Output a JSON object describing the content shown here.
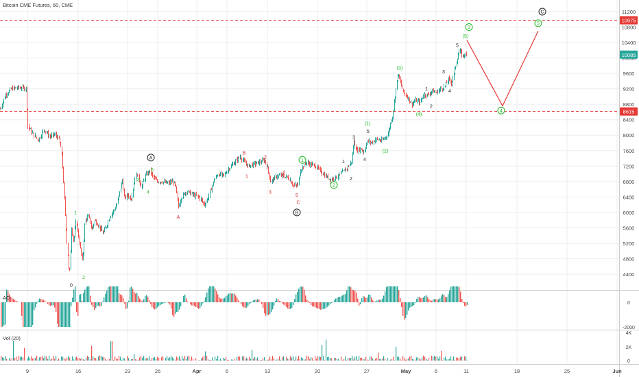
{
  "header": {
    "title": "Bitcoin CME Futures, 60, CME"
  },
  "colors": {
    "up": "#26a69a",
    "down": "#ef5350",
    "wave_green": "#21b821",
    "wave_red": "#d32f2f",
    "wave_black": "#222222",
    "level_line": "#e53935",
    "last_price_bg": "#26a69a",
    "axis_text": "#444444",
    "grid": "#eeeeee"
  },
  "chart_data": {
    "type": "candlestick",
    "symbol": "Bitcoin CME Futures",
    "interval": "60",
    "exchange": "CME",
    "price_axis": {
      "ticks": [
        4400,
        4800,
        5200,
        5600,
        6000,
        6400,
        6800,
        7200,
        7600,
        8000,
        8400,
        8800,
        9200,
        9600,
        10000,
        10400,
        10800,
        11200
      ],
      "tick_labels": [
        "4400",
        "4800",
        "5200",
        "5600",
        "6000",
        "6400",
        "6800",
        "7200",
        "7600",
        "8000",
        "8400",
        "8800",
        "9200",
        "9600",
        "10000",
        "10400",
        "10800",
        "11200"
      ],
      "range": [
        4180,
        11300
      ]
    },
    "time_axis": {
      "labels": [
        "9",
        "16",
        "23",
        "26",
        "Apr",
        "6",
        "13",
        "20",
        "27",
        "May",
        "6",
        "11",
        "18",
        "25",
        "Jun"
      ],
      "bold": [
        "Apr",
        "May",
        "Jun"
      ]
    },
    "price_path": [
      [
        0,
        8680
      ],
      [
        8,
        9050
      ],
      [
        16,
        9200
      ],
      [
        26,
        9230
      ],
      [
        38,
        9210
      ],
      [
        40,
        8250
      ],
      [
        48,
        8020
      ],
      [
        56,
        7880
      ],
      [
        64,
        8160
      ],
      [
        72,
        7960
      ],
      [
        80,
        8020
      ],
      [
        86,
        7900
      ],
      [
        90,
        7500
      ],
      [
        94,
        6200
      ],
      [
        98,
        5100
      ],
      [
        101,
        4300
      ],
      [
        104,
        5600
      ],
      [
        107,
        5250
      ],
      [
        111,
        5800
      ],
      [
        115,
        5300
      ],
      [
        120,
        4700
      ],
      [
        124,
        5800
      ],
      [
        129,
        5900
      ],
      [
        134,
        5550
      ],
      [
        138,
        5800
      ],
      [
        144,
        5650
      ],
      [
        150,
        5450
      ],
      [
        156,
        5700
      ],
      [
        160,
        5900
      ],
      [
        164,
        6000
      ],
      [
        170,
        6200
      ],
      [
        174,
        6500
      ],
      [
        178,
        6850
      ],
      [
        181,
        6350
      ],
      [
        186,
        6450
      ],
      [
        191,
        6350
      ],
      [
        196,
        6850
      ],
      [
        200,
        7000
      ],
      [
        206,
        6650
      ],
      [
        212,
        6950
      ],
      [
        218,
        7080
      ],
      [
        223,
        6920
      ],
      [
        228,
        6800
      ],
      [
        236,
        6800
      ],
      [
        244,
        6750
      ],
      [
        252,
        6800
      ],
      [
        256,
        6650
      ],
      [
        260,
        6150
      ],
      [
        264,
        6400
      ],
      [
        272,
        6550
      ],
      [
        282,
        6450
      ],
      [
        290,
        6400
      ],
      [
        298,
        6200
      ],
      [
        306,
        6500
      ],
      [
        312,
        6850
      ],
      [
        318,
        7000
      ],
      [
        326,
        6950
      ],
      [
        334,
        7150
      ],
      [
        342,
        7300
      ],
      [
        350,
        7450
      ],
      [
        356,
        7300
      ],
      [
        362,
        7200
      ],
      [
        370,
        7250
      ],
      [
        378,
        7300
      ],
      [
        386,
        7350
      ],
      [
        390,
        7150
      ],
      [
        394,
        6800
      ],
      [
        398,
        6850
      ],
      [
        404,
        6950
      ],
      [
        412,
        6950
      ],
      [
        420,
        6900
      ],
      [
        428,
        6700
      ],
      [
        434,
        6700
      ],
      [
        438,
        7100
      ],
      [
        446,
        7300
      ],
      [
        452,
        7250
      ],
      [
        460,
        7200
      ],
      [
        468,
        7050
      ],
      [
        474,
        6950
      ],
      [
        482,
        6850
      ],
      [
        488,
        6900
      ],
      [
        494,
        6950
      ],
      [
        500,
        7050
      ],
      [
        506,
        7150
      ],
      [
        512,
        7300
      ],
      [
        516,
        7850
      ],
      [
        520,
        7600
      ],
      [
        526,
        7650
      ],
      [
        530,
        7550
      ],
      [
        536,
        7850
      ],
      [
        542,
        7800
      ],
      [
        548,
        7900
      ],
      [
        556,
        7850
      ],
      [
        562,
        7950
      ],
      [
        566,
        8050
      ],
      [
        572,
        8500
      ],
      [
        576,
        9050
      ],
      [
        580,
        9600
      ],
      [
        584,
        9350
      ],
      [
        588,
        9100
      ],
      [
        594,
        9000
      ],
      [
        600,
        8800
      ],
      [
        606,
        8900
      ],
      [
        612,
        8850
      ],
      [
        618,
        9050
      ],
      [
        624,
        9050
      ],
      [
        630,
        9150
      ],
      [
        636,
        9100
      ],
      [
        642,
        9200
      ],
      [
        648,
        9250
      ],
      [
        654,
        9450
      ],
      [
        658,
        9350
      ],
      [
        662,
        9600
      ],
      [
        666,
        9950
      ],
      [
        670,
        10200
      ],
      [
        674,
        10050
      ],
      [
        678,
        10100
      ],
      [
        681,
        10000
      ]
    ],
    "projection": {
      "points": [
        [
          681,
          10460
        ],
        [
          733,
          8760
        ],
        [
          785,
          10700
        ]
      ],
      "color": "#e53935"
    },
    "levels": [
      {
        "price": 10975,
        "label": "10975"
      },
      {
        "price": 8615,
        "label": "8615"
      }
    ],
    "last_price": {
      "price": 10085,
      "label": "10085"
    },
    "wave_labels": [
      {
        "text": "0",
        "x": 104,
        "price": 4120,
        "color": "black",
        "circled": false
      },
      {
        "text": "1",
        "x": 110,
        "price": 6000,
        "color": "green",
        "circled": false
      },
      {
        "text": "2",
        "x": 122,
        "price": 4320,
        "color": "green",
        "circled": false
      },
      {
        "text": "3",
        "x": 202,
        "price": 6850,
        "color": "green",
        "circled": false
      },
      {
        "text": "4",
        "x": 216,
        "price": 6530,
        "color": "green",
        "circled": false
      },
      {
        "text": "5",
        "x": 222,
        "price": 7110,
        "color": "green",
        "circled": false
      },
      {
        "text": "A",
        "x": 220,
        "price": 7420,
        "color": "black",
        "circled": true
      },
      {
        "text": "A",
        "x": 260,
        "price": 5880,
        "color": "red",
        "circled": false
      },
      {
        "text": "B",
        "x": 356,
        "price": 7540,
        "color": "red",
        "circled": false
      },
      {
        "text": "1",
        "x": 360,
        "price": 6940,
        "color": "red",
        "circled": false
      },
      {
        "text": "2",
        "x": 387,
        "price": 7440,
        "color": "red",
        "circled": false
      },
      {
        "text": "3",
        "x": 394,
        "price": 6530,
        "color": "red",
        "circled": false
      },
      {
        "text": "4",
        "x": 414,
        "price": 7050,
        "color": "red",
        "circled": false
      },
      {
        "text": "5",
        "x": 433,
        "price": 6450,
        "color": "red",
        "circled": false
      },
      {
        "text": "C",
        "x": 435,
        "price": 6270,
        "color": "red",
        "circled": false
      },
      {
        "text": "B",
        "x": 433,
        "price": 6000,
        "color": "black",
        "circled": true
      },
      {
        "text": "1",
        "x": 441,
        "price": 7360,
        "color": "green",
        "circled": true
      },
      {
        "text": "2",
        "x": 487,
        "price": 6710,
        "color": "green",
        "circled": true
      },
      {
        "text": "1",
        "x": 501,
        "price": 7320,
        "color": "black",
        "circled": false
      },
      {
        "text": "2",
        "x": 512,
        "price": 6880,
        "color": "black",
        "circled": false
      },
      {
        "text": "3",
        "x": 516,
        "price": 7950,
        "color": "black",
        "circled": false
      },
      {
        "text": "4",
        "x": 532,
        "price": 7380,
        "color": "black",
        "circled": false
      },
      {
        "text": "5",
        "x": 537,
        "price": 8100,
        "color": "black",
        "circled": false
      },
      {
        "text": "(1)",
        "x": 536,
        "price": 8310,
        "color": "green",
        "circled": false
      },
      {
        "text": "(2)",
        "x": 562,
        "price": 7600,
        "color": "green",
        "circled": false
      },
      {
        "text": "(3)",
        "x": 583,
        "price": 9750,
        "color": "green",
        "circled": false
      },
      {
        "text": "(4)",
        "x": 611,
        "price": 8550,
        "color": "green",
        "circled": false
      },
      {
        "text": "1",
        "x": 622,
        "price": 9200,
        "color": "black",
        "circled": false
      },
      {
        "text": "2",
        "x": 629,
        "price": 8750,
        "color": "black",
        "circled": false
      },
      {
        "text": "3",
        "x": 647,
        "price": 9650,
        "color": "black",
        "circled": false
      },
      {
        "text": "4",
        "x": 656,
        "price": 9150,
        "color": "black",
        "circled": false
      },
      {
        "text": "5",
        "x": 667,
        "price": 10330,
        "color": "black",
        "circled": false
      },
      {
        "text": "(5)",
        "x": 679,
        "price": 10570,
        "color": "green",
        "circled": false
      },
      {
        "text": "3",
        "x": 684,
        "price": 10800,
        "color": "green",
        "circled": true
      },
      {
        "text": "4",
        "x": 731,
        "price": 8640,
        "color": "green",
        "circled": true
      },
      {
        "text": "5",
        "x": 785,
        "price": 10900,
        "color": "green",
        "circled": true
      },
      {
        "text": "C",
        "x": 791,
        "price": 11200,
        "color": "black",
        "circled": true
      }
    ],
    "indicators": [
      {
        "name": "AO",
        "ticks": [
          0,
          -2000
        ],
        "tick_labels": [
          "0",
          "-2000"
        ],
        "range": [
          -2700,
          1500
        ]
      },
      {
        "name": "Vol (20)",
        "ticks": [
          0,
          2000,
          4000
        ],
        "tick_labels": [
          "0",
          "2K",
          "4K"
        ],
        "range": [
          0,
          4300
        ]
      }
    ]
  }
}
